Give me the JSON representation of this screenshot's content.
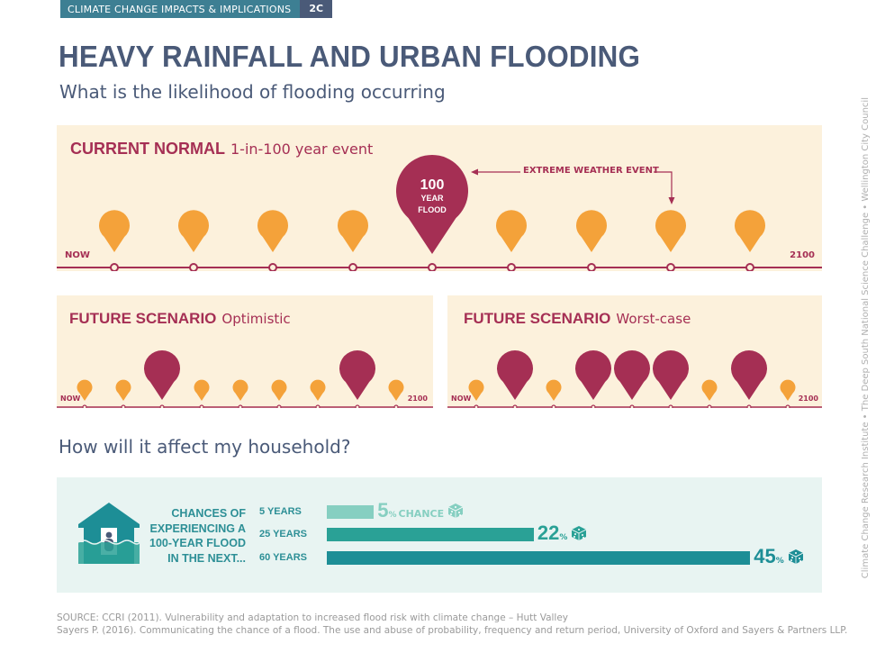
{
  "header": {
    "tag": "CLIMATE CHANGE IMPACTS & IMPLICATIONS",
    "code": "2C"
  },
  "title": "HEAVY RAINFALL AND URBAN FLOODING",
  "subtitle": "What is the likelihood of flooding occurring",
  "current": {
    "title": "CURRENT NORMAL",
    "subtitle": "1-in-100 year event",
    "now_label": "NOW",
    "end_label": "2100",
    "flood_lines": [
      "100",
      "YEAR",
      "FLOOD"
    ],
    "callout": "EXTREME WEATHER EVENT",
    "markers": [
      "small",
      "small",
      "small",
      "small",
      "big",
      "small",
      "small",
      "small",
      "small"
    ]
  },
  "optimistic": {
    "title": "FUTURE SCENARIO",
    "subtitle": "Optimistic",
    "now_label": "NOW",
    "end_label": "2100",
    "markers": [
      "small",
      "small",
      "big",
      "small",
      "small",
      "small",
      "small",
      "big",
      "small"
    ]
  },
  "worstcase": {
    "title": "FUTURE SCENARIO",
    "subtitle": "Worst-case",
    "now_label": "NOW",
    "end_label": "2100",
    "markers": [
      "small",
      "big",
      "small",
      "big",
      "big",
      "big",
      "small",
      "big",
      "small"
    ]
  },
  "household": {
    "question": "How will it affect my household?",
    "label": "CHANCES OF EXPERIENCING A 100-YEAR FLOOD IN THE NEXT...",
    "label_lines": [
      "CHANCES OF",
      "EXPERIENCING A",
      "100-YEAR FLOOD",
      "IN THE NEXT..."
    ],
    "rows": [
      {
        "years": "5 YEARS",
        "value": 5,
        "pct": "5",
        "suffix": "%",
        "chance": "CHANCE",
        "color": "#86cfc1"
      },
      {
        "years": "25 YEARS",
        "value": 22,
        "pct": "22",
        "suffix": "%",
        "chance": "",
        "color": "#2aa196"
      },
      {
        "years": "60 YEARS",
        "value": 45,
        "pct": "45",
        "suffix": "%",
        "chance": "",
        "color": "#1d8e96"
      }
    ]
  },
  "sources": [
    "SOURCE: CCRI (2011). Vulnerability and adaptation to increased flood risk with climate change – Hutt Valley",
    "Sayers P. (2016). Communicating the chance of a flood. The use and abuse of probability, frequency and return period, University of Oxford and Sayers & Partners LLP."
  ],
  "credit": "Climate Change Research Institute  •  The Deep South National Science Challenge  •  Wellington City Council",
  "colors": {
    "orange": "#f4a23a",
    "crimson": "#a52f54",
    "teal_dark": "#1d8e96",
    "navy": "#4a5a78",
    "panel": "#fcf1dc"
  }
}
